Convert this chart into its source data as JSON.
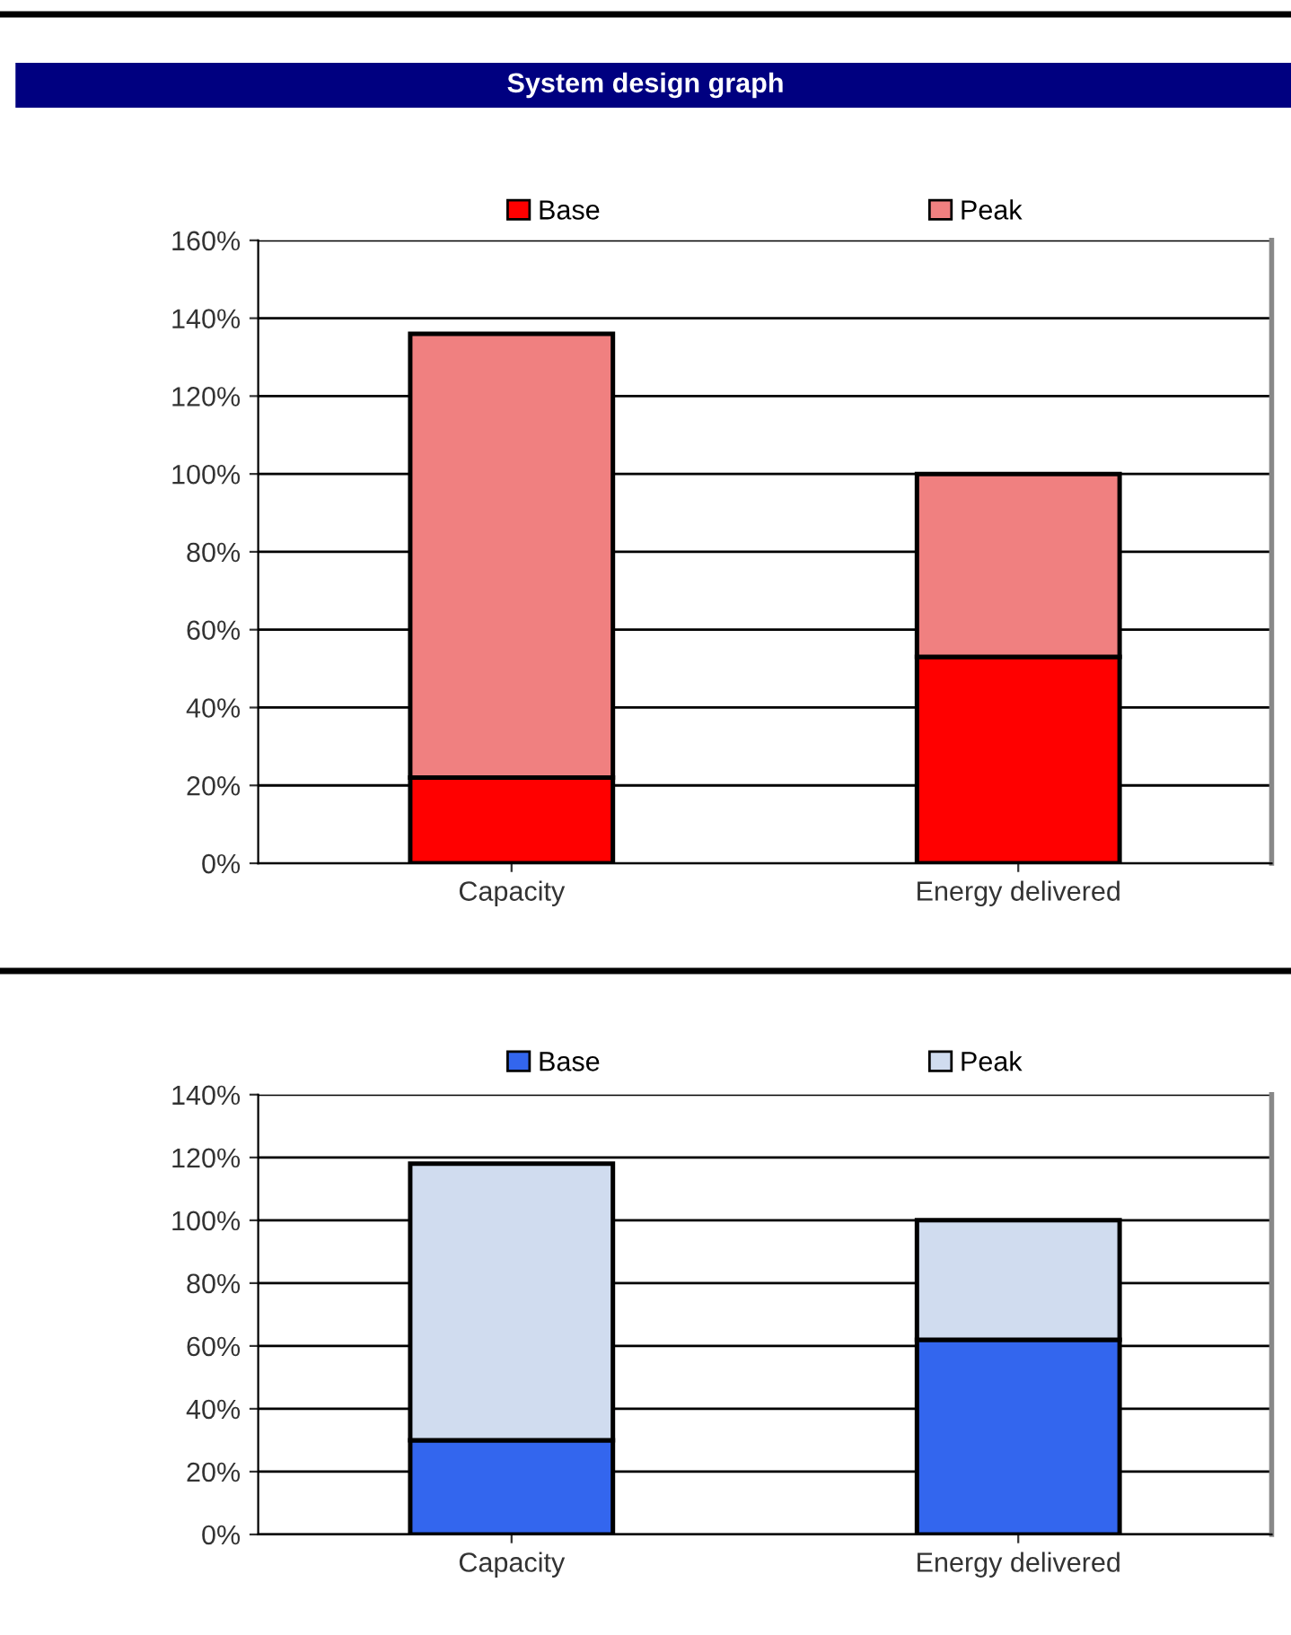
{
  "chart_data": [
    {
      "type": "bar",
      "title": "System design graph",
      "categories": [
        "Capacity",
        "Energy delivered"
      ],
      "stacked": true,
      "series": [
        {
          "name": "Base",
          "color": "#ff0000",
          "values": [
            22,
            53
          ]
        },
        {
          "name": "Peak",
          "color": "#f08080",
          "values": [
            114,
            47
          ]
        }
      ],
      "ylim": [
        0,
        160
      ],
      "yticks": [
        {
          "value": 0,
          "label": "0%"
        },
        {
          "value": 20,
          "label": "20%"
        },
        {
          "value": 40,
          "label": "40%"
        },
        {
          "value": 60,
          "label": "60%"
        },
        {
          "value": 80,
          "label": "80%"
        },
        {
          "value": 100,
          "label": "100%"
        },
        {
          "value": 120,
          "label": "120%"
        },
        {
          "value": 140,
          "label": "140%"
        },
        {
          "value": 160,
          "label": "160%"
        }
      ],
      "grid": "y",
      "legend": "top"
    },
    {
      "type": "bar",
      "categories": [
        "Capacity",
        "Energy delivered"
      ],
      "stacked": true,
      "series": [
        {
          "name": "Base",
          "color": "#3366ee",
          "values": [
            30,
            62
          ]
        },
        {
          "name": "Peak",
          "color": "#d0dcef",
          "values": [
            88,
            38
          ]
        }
      ],
      "ylim": [
        0,
        140
      ],
      "yticks": [
        {
          "value": 0,
          "label": "0%"
        },
        {
          "value": 20,
          "label": "20%"
        },
        {
          "value": 40,
          "label": "40%"
        },
        {
          "value": 60,
          "label": "60%"
        },
        {
          "value": 80,
          "label": "80%"
        },
        {
          "value": 100,
          "label": "100%"
        },
        {
          "value": 120,
          "label": "120%"
        },
        {
          "value": 140,
          "label": "140%"
        }
      ],
      "grid": "y",
      "legend": "top"
    }
  ]
}
